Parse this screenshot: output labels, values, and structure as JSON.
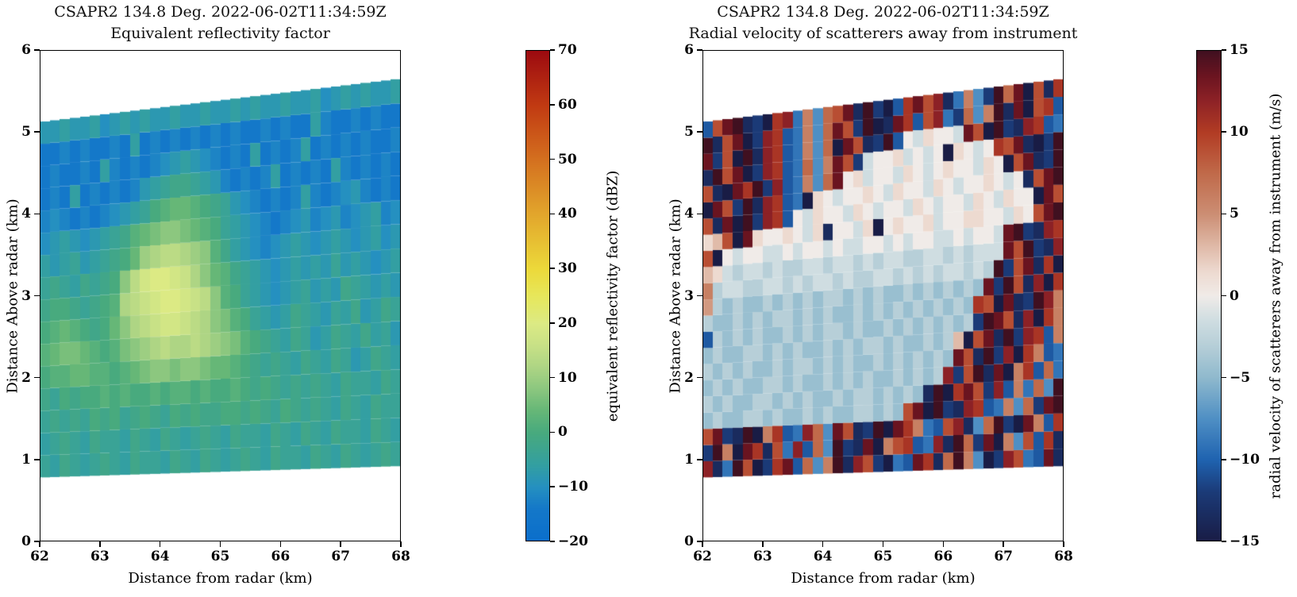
{
  "figure": {
    "background": "#ffffff"
  },
  "chart_data": [
    {
      "type": "heatmap",
      "title": "CSAPR2 134.8 Deg. 2022-06-02T11:34:59Z",
      "subtitle": "Equivalent reflectivity factor",
      "xlabel": "Distance from radar (km)",
      "ylabel": "Distance Above radar (km)",
      "xlim": [
        62,
        68
      ],
      "ylim": [
        0,
        6
      ],
      "xticks": [
        {
          "v": 62,
          "label": "62"
        },
        {
          "v": 63,
          "label": "63"
        },
        {
          "v": 64,
          "label": "64"
        },
        {
          "v": 65,
          "label": "65"
        },
        {
          "v": 66,
          "label": "66"
        },
        {
          "v": 67,
          "label": "67"
        },
        {
          "v": 68,
          "label": "68"
        }
      ],
      "yticks": [
        {
          "v": 0,
          "label": "0"
        },
        {
          "v": 1,
          "label": "1"
        },
        {
          "v": 2,
          "label": "2"
        },
        {
          "v": 3,
          "label": "3"
        },
        {
          "v": 4,
          "label": "4"
        },
        {
          "v": 5,
          "label": "5"
        },
        {
          "v": 6,
          "label": "6"
        }
      ],
      "colorbar": {
        "label": "equivalent reflectivity factor (dBZ)",
        "vmin": -20,
        "vmax": 70,
        "ticks": [
          {
            "v": 70,
            "label": "70"
          },
          {
            "v": 60,
            "label": "60"
          },
          {
            "v": 50,
            "label": "50"
          },
          {
            "v": 40,
            "label": "40"
          },
          {
            "v": 30,
            "label": "30"
          },
          {
            "v": 20,
            "label": "20"
          },
          {
            "v": 10,
            "label": "10"
          },
          {
            "v": 0,
            "label": "0"
          },
          {
            "v": -10,
            "label": "−10"
          },
          {
            "v": -20,
            "label": "−20"
          }
        ],
        "stops": [
          [
            -20,
            "#0a6ecb"
          ],
          [
            -14,
            "#1478c9"
          ],
          [
            -10,
            "#2590c0"
          ],
          [
            -6,
            "#339fa2"
          ],
          [
            -2,
            "#41a689"
          ],
          [
            0,
            "#48aa7e"
          ],
          [
            4,
            "#66b777"
          ],
          [
            8,
            "#8cc77f"
          ],
          [
            12,
            "#aed584"
          ],
          [
            16,
            "#c8e186"
          ],
          [
            20,
            "#dcea84"
          ],
          [
            25,
            "#e7e75b"
          ],
          [
            30,
            "#ecd93a"
          ],
          [
            40,
            "#e2a62c"
          ],
          [
            50,
            "#d4701f"
          ],
          [
            60,
            "#c13a12"
          ],
          [
            70,
            "#9c0a10"
          ]
        ]
      },
      "grid": {
        "cols": 36,
        "rows": 16,
        "row_order": "bottom-to-top",
        "bottom_edge_km": [
          0.78,
          0.92
        ],
        "top_edge_km": [
          5.12,
          5.65
        ],
        "value_encoding": {
          "first_char": "a",
          "origin": -18,
          "step": 2,
          "units": "dBZ"
        },
        "rows_data": [
          "hgihghihgihhgihgihghihgihhgihgihghih",
          "ghihgihhgihgihghihgihhgihgihgihhgihg",
          "hihihjijhijihjijiijjijihjihihgihgihh",
          "ihjijjkjkjjkjkkjkjjkjijihihihgihhgih",
          "jkkllkkjklmnnmnnmllkjihihgihgihfgihg",
          "klmmlkjkmnopqppqponmkjihgihfgihgighf",
          "jklkjijlnpqrssrqpnmkjhgfgihgfhgifgih",
          "ijjihijkpqrsttsrqnkjhgfefghfgfihgfgf",
          "hihgihijnqsttsrpnlkihgfefgfgfhfgfefg",
          "gfghfghijlopqqponkigfedefgfefgfefgef",
          "efgfefghiklmnnmlkjhgfedcdefdefdefgde",
          "dedcdcdefghjkllkjihfedcdcdgdcdefdcdc",
          "cdcgcdcdcdfghiihgfdcdcdgcdcdcgdcdcdc",
          "cdccdcgdcdcdefgfedcdcgcdcdgcdcdcdccd",
          "ccdcdccdcgcdcdcdcdcdccdcdccgdccdcdcc",
          "ffgffgefgfgffgffgffgfgffgffgefgfgffg"
        ]
      }
    },
    {
      "type": "heatmap",
      "title": "CSAPR2 134.8 Deg. 2022-06-02T11:34:59Z",
      "subtitle": "Radial velocity of scatterers away from instrument",
      "xlabel": "Distance from radar (km)",
      "ylabel": "Distance Above radar (km)",
      "xlim": [
        62,
        68
      ],
      "ylim": [
        0,
        6
      ],
      "xticks": [
        {
          "v": 62,
          "label": "62"
        },
        {
          "v": 63,
          "label": "63"
        },
        {
          "v": 64,
          "label": "64"
        },
        {
          "v": 65,
          "label": "65"
        },
        {
          "v": 66,
          "label": "66"
        },
        {
          "v": 67,
          "label": "67"
        },
        {
          "v": 68,
          "label": "68"
        }
      ],
      "yticks": [
        {
          "v": 0,
          "label": "0"
        },
        {
          "v": 1,
          "label": "1"
        },
        {
          "v": 2,
          "label": "2"
        },
        {
          "v": 3,
          "label": "3"
        },
        {
          "v": 4,
          "label": "4"
        },
        {
          "v": 5,
          "label": "5"
        },
        {
          "v": 6,
          "label": "6"
        }
      ],
      "colorbar": {
        "label": "radial velocity of scatterers away from instrument (m/s)",
        "vmin": -15,
        "vmax": 15,
        "ticks": [
          {
            "v": 15,
            "label": "15"
          },
          {
            "v": 10,
            "label": "10"
          },
          {
            "v": 5,
            "label": "5"
          },
          {
            "v": 0,
            "label": "0"
          },
          {
            "v": -5,
            "label": "−5"
          },
          {
            "v": -10,
            "label": "−10"
          },
          {
            "v": -15,
            "label": "−15"
          }
        ],
        "stops": [
          [
            -15,
            "#191c45"
          ],
          [
            -12,
            "#1b3a77"
          ],
          [
            -10,
            "#1f63b0"
          ],
          [
            -7.5,
            "#4f8fc4"
          ],
          [
            -5,
            "#8fb9cd"
          ],
          [
            -3,
            "#b7cfd8"
          ],
          [
            -1.5,
            "#cfdde1"
          ],
          [
            0,
            "#f0ebe8"
          ],
          [
            1.5,
            "#eddad0"
          ],
          [
            3,
            "#e0bba9"
          ],
          [
            5,
            "#cc8e74"
          ],
          [
            7.5,
            "#c06a4a"
          ],
          [
            10,
            "#b23c24"
          ],
          [
            12,
            "#8c2126"
          ],
          [
            13.5,
            "#6a1420"
          ],
          [
            15,
            "#401020"
          ]
        ]
      },
      "grid": {
        "cols": 36,
        "rows": 22,
        "row_order": "bottom-to-top",
        "bottom_edge_km": [
          0.78,
          0.92
        ],
        "top_edge_km": [
          5.12,
          5.65
        ],
        "value_encoding": {
          "first_char": "a",
          "origin": -15,
          "step": 1.5,
          "units": "m/s"
        },
        "rows_data": [
          "sbeuqacrtdpfoubsqcaedtrbpuofacsqedtb",
          "cuoatrbqesdpfucbtaoqrdesbupctaofqdrb",
          "qtcbuaordespftqbcuatroedqsbfpucatodr",
          "hihhiihihhihihhiihihqtaucbsrdeofpctu",
          "ihihhiihihihhihiihihihbuartqcsdoepfu",
          "hihihhiihihhihihihhihihiscqubtaordpe",
          "ihihihhihiihihihhihihihihtqbucsarode",
          "hihhiihihihhihihiihihhihimaqtbucsrdo",
          "dihihihhihihiihihhihihihihicutqbsaro",
          "ihhihihiihihihhihihihihihihrqatbcuso",
          "nihihhihihihiihihihhihihihihtcuqbsar",
          "oijjiijjijijjijiijjijijijjijiucqtbra",
          "mljijjijiijjijjijijjiijjijijjjtqucbs",
          "qakjkkjjkjkkjkjjkkjkjkkjjkjkkjtucbsr",
          "lmqatlkklkjlbkkjlaklkkljkkllkkjlkqtu",
          "qbtaucsrdkjlkkjlkjkkjlkjkkjlkjlkkatq",
          "atqcubsrdealkjkklkjlkkjlkjkklkjkbqtu",
          "qbatrucsdeofptkljkkjlkjklkkjlkaqtbcu",
          "buqtacsrdepfotqcjkkljkjkalkjkrqtbacu",
          "tcqaubsrdeofpatqbcudkjlkkjtqaucbsrde",
          "ubqtacsrdeofptqcuabtrdqsecpfoubtaqrd",
          "dqtubcarseofpqtbucadrtqsbeofcuptaqbr"
        ]
      }
    }
  ]
}
